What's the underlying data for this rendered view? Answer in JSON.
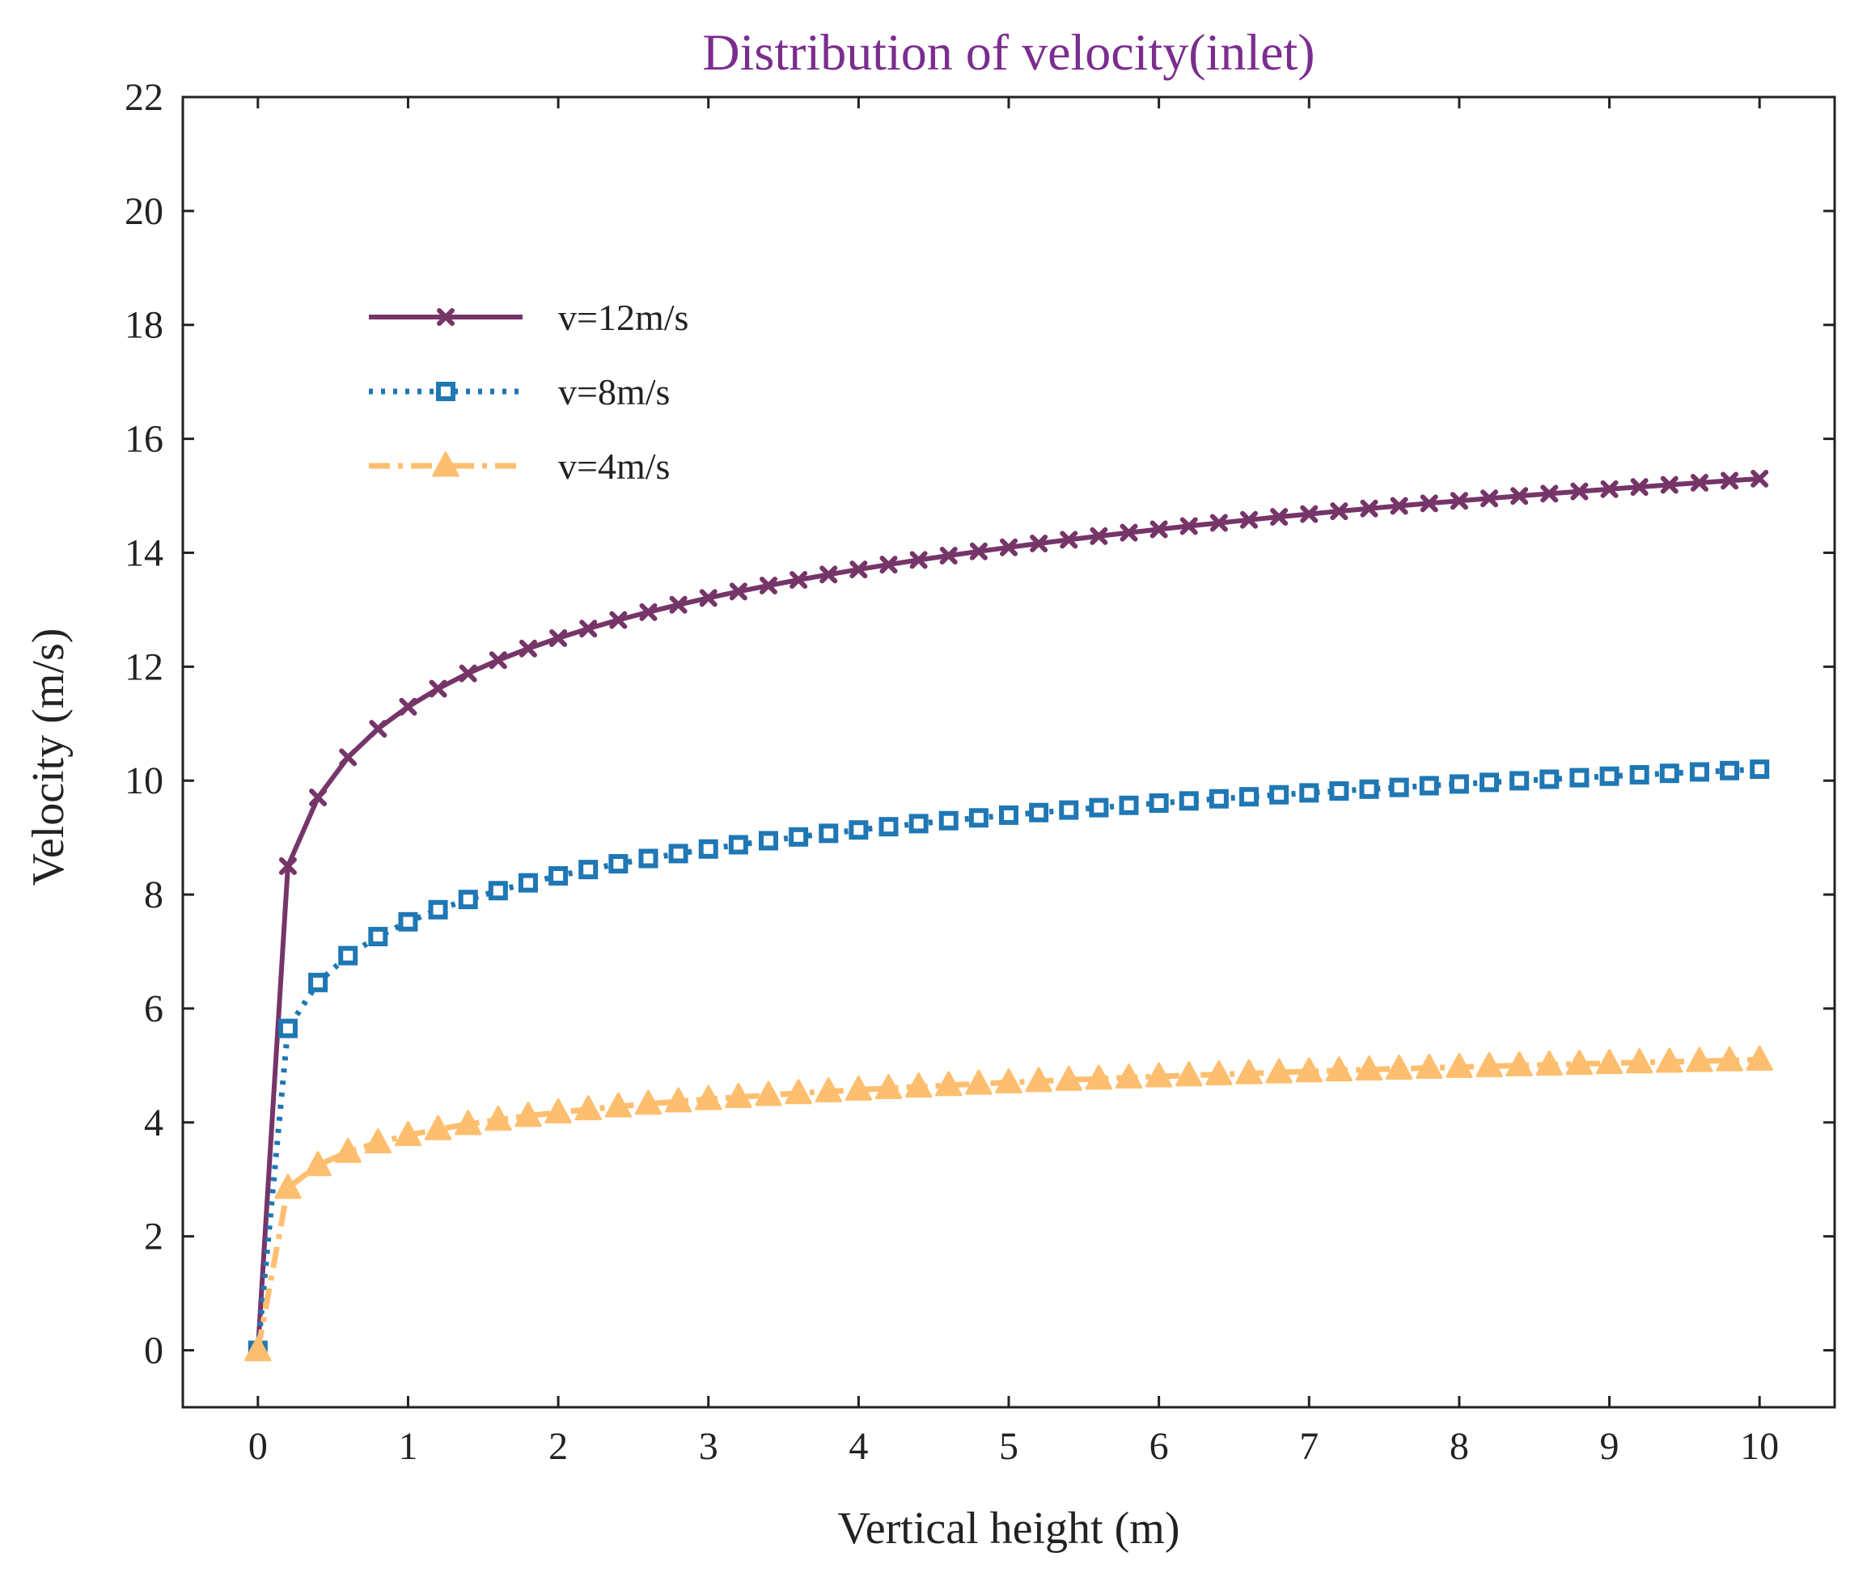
{
  "chart_data": {
    "type": "line",
    "title": "Distribution of velocity(inlet)",
    "xlabel": "Vertical height (m)",
    "ylabel": "Velocity (m/s)",
    "xlim": [
      -0.5,
      10.5
    ],
    "ylim": [
      -1,
      22
    ],
    "xticks": [
      0,
      1,
      2,
      3,
      4,
      5,
      6,
      7,
      8,
      9,
      10
    ],
    "yticks": [
      0,
      2,
      4,
      6,
      8,
      10,
      12,
      14,
      16,
      18,
      20,
      22
    ],
    "legend_position": "upper-left",
    "colors": {
      "title": "#7B2D8E",
      "axis": "#222222"
    },
    "series": [
      {
        "name": "v=12m/s",
        "color": "#763569",
        "line_style": "solid",
        "marker": "x",
        "profile": {
          "x0": 0.2,
          "y0": 8.5,
          "y_end": 15.3,
          "x_end": 10,
          "step": 0.2,
          "origin": [
            0,
            0
          ]
        }
      },
      {
        "name": "v=8m/s",
        "color": "#1F77B4",
        "line_style": "dotted",
        "marker": "square",
        "profile": {
          "x0": 0.2,
          "y0": 5.65,
          "y_end": 10.2,
          "x_end": 10,
          "step": 0.2,
          "origin": [
            0,
            0
          ]
        }
      },
      {
        "name": "v=4m/s",
        "color": "#FDBF6F",
        "line_style": "dashdot",
        "marker": "triangle",
        "profile": {
          "x0": 0.2,
          "y0": 2.85,
          "y_end": 5.1,
          "x_end": 10,
          "step": 0.2,
          "origin": [
            0,
            0
          ]
        }
      }
    ]
  }
}
